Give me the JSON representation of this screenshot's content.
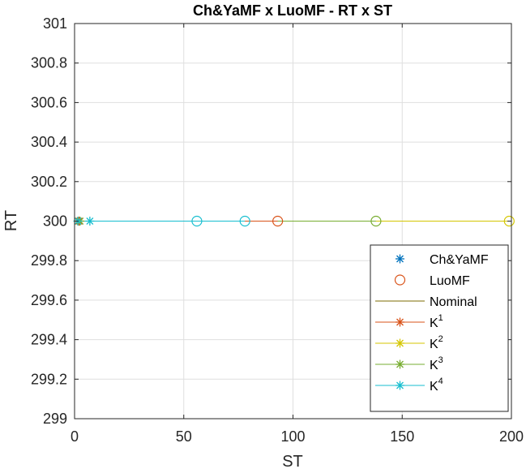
{
  "chart_data": {
    "type": "line",
    "title": "Ch&YaMF x LuoMF - RT  x ST",
    "xlabel": "ST",
    "ylabel": "RT",
    "xlim": [
      0,
      200
    ],
    "ylim": [
      299,
      301
    ],
    "xticks": [
      0,
      50,
      100,
      150,
      200
    ],
    "xtick_labels": [
      "0",
      "50",
      "100",
      "150",
      "200"
    ],
    "yticks": [
      299,
      299.2,
      299.4,
      299.6,
      299.8,
      300,
      300.2,
      300.4,
      300.6,
      300.8,
      301
    ],
    "ytick_labels": [
      "299",
      "299.2",
      "299.4",
      "299.6",
      "299.8",
      "300",
      "300.2",
      "300.4",
      "300.6",
      "300.8",
      "301"
    ],
    "grid": true,
    "legend_position": "bottom-right",
    "legend": [
      {
        "label": "Ch&YaMF",
        "sup": "",
        "marker": "star",
        "line": false,
        "color": "#0072BD"
      },
      {
        "label": "LuoMF",
        "sup": "",
        "marker": "circle",
        "line": false,
        "color": "#D95319"
      },
      {
        "label": "Nominal",
        "sup": "",
        "marker": "none",
        "line": true,
        "color": "#7E6B00"
      },
      {
        "label": "K",
        "sup": "1",
        "marker": "star",
        "line": true,
        "color": "#D95319"
      },
      {
        "label": "K",
        "sup": "2",
        "marker": "star",
        "line": true,
        "color": "#D4C600"
      },
      {
        "label": "K",
        "sup": "3",
        "marker": "star",
        "line": true,
        "color": "#77AC30"
      },
      {
        "label": "K",
        "sup": "4",
        "marker": "star",
        "line": true,
        "color": "#17BECF"
      }
    ],
    "series": [
      {
        "id": "k2-line",
        "color": "#D4C600",
        "marker": "none",
        "x": [
          1.5,
          199
        ],
        "y": [
          300,
          300
        ]
      },
      {
        "id": "k3-line",
        "color": "#77AC30",
        "marker": "none",
        "x": [
          1.5,
          138
        ],
        "y": [
          300,
          300
        ]
      },
      {
        "id": "k1-line",
        "color": "#D95319",
        "marker": "none",
        "x": [
          1.5,
          93
        ],
        "y": [
          300,
          300
        ]
      },
      {
        "id": "k4-line",
        "color": "#17BECF",
        "marker": "none",
        "x": [
          1.5,
          56,
          78
        ],
        "y": [
          300,
          300,
          300
        ]
      },
      {
        "id": "luomf-k2",
        "color": "#D4C600",
        "marker": "circle",
        "x": [
          199
        ],
        "y": [
          300
        ]
      },
      {
        "id": "luomf-k3",
        "color": "#77AC30",
        "marker": "circle",
        "x": [
          138
        ],
        "y": [
          300
        ]
      },
      {
        "id": "luomf-k1",
        "color": "#D95319",
        "marker": "circle",
        "x": [
          93
        ],
        "y": [
          300
        ]
      },
      {
        "id": "luomf-k4",
        "color": "#17BECF",
        "marker": "circle",
        "x": [
          56,
          78
        ],
        "y": [
          300,
          300
        ]
      },
      {
        "id": "chyamf-k1",
        "color": "#D95319",
        "marker": "star",
        "x": [
          2
        ],
        "y": [
          300
        ]
      },
      {
        "id": "chyamf-k2",
        "color": "#D4C600",
        "marker": "star",
        "x": [
          1.5
        ],
        "y": [
          300
        ]
      },
      {
        "id": "chyamf-k3",
        "color": "#77AC30",
        "marker": "star",
        "x": [
          2.5
        ],
        "y": [
          300
        ]
      },
      {
        "id": "chyamf-k4",
        "color": "#17BECF",
        "marker": "star",
        "x": [
          1.5,
          7
        ],
        "y": [
          300,
          300
        ]
      }
    ]
  }
}
